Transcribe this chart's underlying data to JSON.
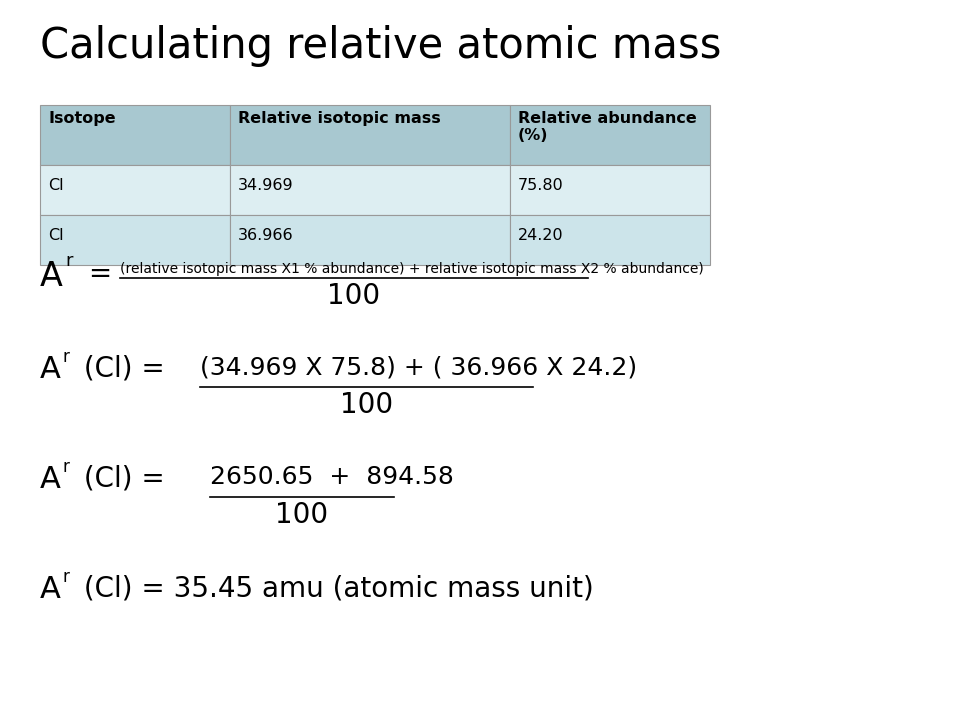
{
  "title": "Calculating relative atomic mass",
  "title_fontsize": 30,
  "background_color": "#ffffff",
  "table_header_bg": "#a8c8d0",
  "table_row1_bg": "#ddeef2",
  "table_row2_bg": "#cce4ea",
  "table_headers": [
    "Isotope",
    "Relative isotopic mass",
    "Relative abundance\n(%)"
  ],
  "table_rows": [
    [
      "Cl",
      "34.969",
      "75.80"
    ],
    [
      "Cl",
      "36.966",
      "24.20"
    ]
  ],
  "text_color": "#000000",
  "formula1_num": "(relative isotopic mass X1 % abundance) + relative isotopic mass X2 % abundance)",
  "formula1_denom": "100",
  "formula2_prefix": "A",
  "formula2_eq": " (Cl) = ",
  "formula2_num": "(34.969 X 75.8) + ( 36.966 X 24.2)",
  "formula2_denom": "100",
  "formula3_eq": " (Cl) =  ",
  "formula3_num": "2650.65  +  894.58",
  "formula3_denom": "100",
  "formula4_rest": " (Cl) = 35.45 amu (atomic mass unit)"
}
